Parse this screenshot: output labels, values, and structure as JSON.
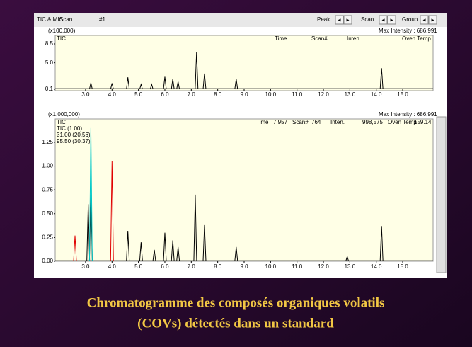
{
  "toolbar": {
    "left": [
      "TIC & MIC",
      "Scan",
      "#1"
    ],
    "right": [
      "Peak",
      "Scan",
      "Group"
    ]
  },
  "chart_data": [
    {
      "type": "peaks",
      "multiplier": "(x100,000)",
      "plot_label": "TIC",
      "info": [
        "Max Intensity : 686,991",
        "Time",
        "Scan#",
        "Inten.",
        "Oven Temp"
      ],
      "xlim": [
        1.85,
        16.15
      ],
      "ylim": [
        0.1,
        8.5
      ],
      "yticks": [
        8.5,
        {
          "value": 5,
          "label": "5.0"
        },
        0.1
      ],
      "xticks": [
        {
          "value": 3,
          "label": "3.0"
        },
        {
          "value": 4,
          "label": "4.0"
        },
        {
          "value": 5,
          "label": "5.0"
        },
        {
          "value": 6,
          "label": "6.0"
        },
        {
          "value": 7,
          "label": "7.0"
        },
        {
          "value": 8,
          "label": "8.0"
        },
        {
          "value": 9,
          "label": "9.0"
        },
        {
          "value": 10,
          "label": "10.0"
        },
        {
          "value": 11,
          "label": "11.0"
        },
        {
          "value": 12,
          "label": "12.0"
        },
        {
          "value": 13,
          "label": "13.0"
        },
        {
          "value": 14,
          "label": "14.0"
        },
        {
          "value": 15,
          "label": "15.0"
        }
      ],
      "series": [
        {
          "name": "TIC",
          "color": "#000000",
          "x": [
            3.2,
            4.0,
            4.6,
            5.1,
            5.5,
            6.0,
            6.3,
            6.5,
            7.2,
            7.5,
            8.7,
            14.2
          ],
          "values": [
            1.3,
            1.2,
            2.3,
            1.0,
            1.0,
            2.4,
            2.0,
            1.5,
            7.0,
            3.0,
            2.0,
            4.0
          ]
        }
      ]
    },
    {
      "type": "peaks",
      "multiplier": "(x1,000,000)",
      "plot_label": "TIC",
      "info": [
        "Max Intensity : 686,991",
        "Time",
        "7.957",
        "Scan#",
        "764",
        "Inten.",
        "998,575",
        "Oven Temp",
        "159.14"
      ],
      "xlim": [
        1.85,
        16.15
      ],
      "ylim": [
        0,
        1.48
      ],
      "yticks": [
        {
          "value": 0,
          "label": "0.00"
        },
        {
          "value": 0.25,
          "label": "0.25"
        },
        {
          "value": 0.5,
          "label": "0.50"
        },
        {
          "value": 0.75,
          "label": "0.75"
        },
        {
          "value": 1,
          "label": "1.00"
        },
        {
          "value": 1.25,
          "label": "1.25"
        }
      ],
      "xticks": [
        {
          "value": 3,
          "label": "3.0"
        },
        {
          "value": 4,
          "label": "4.0"
        },
        {
          "value": 5,
          "label": "5.0"
        },
        {
          "value": 6,
          "label": "6.0"
        },
        {
          "value": 7,
          "label": "7.0"
        },
        {
          "value": 8,
          "label": "8.0"
        },
        {
          "value": 9,
          "label": "9.0"
        },
        {
          "value": 10,
          "label": "10.0"
        },
        {
          "value": 11,
          "label": "11.0"
        },
        {
          "value": 12,
          "label": "12.0"
        },
        {
          "value": 13,
          "label": "13.0"
        },
        {
          "value": 14,
          "label": "14.0"
        },
        {
          "value": 15,
          "label": "15.0"
        }
      ],
      "series": [
        {
          "name": "TIC (1.00)",
          "color": "#000000",
          "legend_color": "#ff00ff",
          "x": [
            3.1,
            3.2,
            4.6,
            5.1,
            5.6,
            6.0,
            6.3,
            6.5,
            7.15,
            7.5,
            8.7,
            12.9,
            14.2
          ],
          "values": [
            0.6,
            0.7,
            0.32,
            0.2,
            0.12,
            0.3,
            0.22,
            0.15,
            0.7,
            0.38,
            0.15,
            0.05,
            0.37
          ]
        },
        {
          "name": "31.00 (20.56)",
          "color": "#00c8c8",
          "legend_color": "#00c8c8",
          "x": [
            3.2
          ],
          "values": [
            1.4
          ]
        },
        {
          "name": "95.50 (30.37)",
          "color": "#e00000",
          "legend_color": "#e00000",
          "x": [
            2.6,
            4.0
          ],
          "values": [
            0.27,
            1.05
          ]
        }
      ]
    }
  ],
  "caption": [
    "Chromatogramme des composés organiques volatils",
    "(COVs) détectés dans un standard"
  ]
}
